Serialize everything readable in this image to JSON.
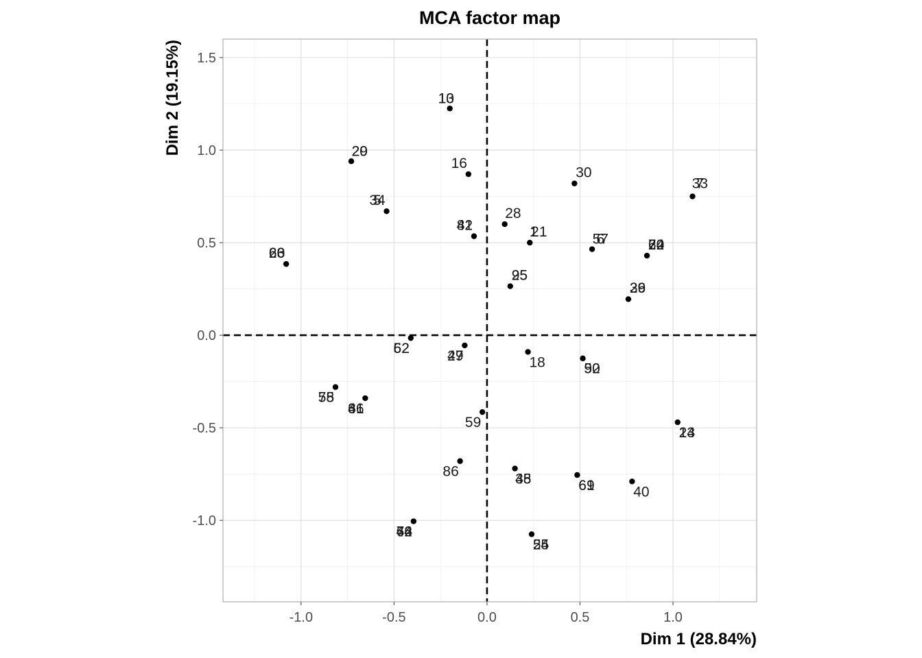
{
  "chart_data": {
    "type": "scatter",
    "title": "MCA factor map",
    "xlabel": "Dim 1 (28.84%)",
    "ylabel": "Dim 2 (19.15%)",
    "xlim": [
      -1.42,
      1.45
    ],
    "ylim": [
      -1.44,
      1.6
    ],
    "xticks": [
      -1.0,
      -0.5,
      0.0,
      0.5,
      1.0
    ],
    "xtick_labels": [
      "-1.0",
      "-0.5",
      "0.0",
      "0.5",
      "1.0"
    ],
    "yticks": [
      -1.0,
      -0.5,
      0.0,
      0.5,
      1.0,
      1.5
    ],
    "ytick_labels": [
      "-1.0",
      "-0.5",
      "0.0",
      "0.5",
      "1.0",
      "1.5"
    ],
    "grid": true,
    "reference_lines": {
      "x": 0,
      "y": 0,
      "style": "dashed"
    },
    "colors": {
      "points": "#000000",
      "labels": "#1a1a1a",
      "panel_border": "#b3b3b3",
      "grid": "#dcdcdc"
    },
    "points": [
      {
        "x": -0.2,
        "y": 1.225,
        "labels": [
          {
            "text": "10",
            "dx": -0.02,
            "dy": 0.055
          },
          {
            "text": "13",
            "dx": -0.02,
            "dy": 0.055
          }
        ]
      },
      {
        "x": -0.73,
        "y": 0.94,
        "labels": [
          {
            "text": "29",
            "dx": 0.045,
            "dy": 0.055
          },
          {
            "text": "20",
            "dx": 0.045,
            "dy": 0.055
          }
        ]
      },
      {
        "x": -0.1,
        "y": 0.87,
        "labels": [
          {
            "text": "16",
            "dx": -0.05,
            "dy": 0.06
          }
        ]
      },
      {
        "x": 0.47,
        "y": 0.82,
        "labels": [
          {
            "text": "30",
            "dx": 0.05,
            "dy": 0.06
          }
        ]
      },
      {
        "x": 1.105,
        "y": 0.75,
        "labels": [
          {
            "text": "7",
            "dx": 0.04,
            "dy": 0.07
          },
          {
            "text": "33",
            "dx": 0.04,
            "dy": 0.07
          }
        ]
      },
      {
        "x": -0.54,
        "y": 0.67,
        "labels": [
          {
            "text": "34",
            "dx": -0.05,
            "dy": 0.06
          },
          {
            "text": "5",
            "dx": -0.05,
            "dy": 0.06
          }
        ]
      },
      {
        "x": 0.095,
        "y": 0.6,
        "labels": [
          {
            "text": "28",
            "dx": 0.045,
            "dy": 0.06
          }
        ]
      },
      {
        "x": -0.07,
        "y": 0.535,
        "labels": [
          {
            "text": "81",
            "dx": -0.05,
            "dy": 0.06
          },
          {
            "text": "42",
            "dx": -0.05,
            "dy": 0.06
          }
        ]
      },
      {
        "x": 0.23,
        "y": 0.5,
        "labels": [
          {
            "text": "1",
            "dx": 0.02,
            "dy": 0.06
          },
          {
            "text": "21",
            "dx": 0.05,
            "dy": 0.06
          }
        ]
      },
      {
        "x": 0.565,
        "y": 0.465,
        "labels": [
          {
            "text": "6",
            "dx": 0.045,
            "dy": 0.055
          },
          {
            "text": "57",
            "dx": 0.045,
            "dy": 0.055
          }
        ]
      },
      {
        "x": 0.86,
        "y": 0.43,
        "labels": [
          {
            "text": "64",
            "dx": 0.05,
            "dy": 0.06
          },
          {
            "text": "70",
            "dx": 0.05,
            "dy": 0.06
          },
          {
            "text": "22",
            "dx": 0.05,
            "dy": 0.06
          }
        ]
      },
      {
        "x": -1.08,
        "y": 0.385,
        "labels": [
          {
            "text": "23",
            "dx": -0.05,
            "dy": 0.06
          },
          {
            "text": "60",
            "dx": -0.05,
            "dy": 0.06
          },
          {
            "text": "66",
            "dx": -0.05,
            "dy": 0.06
          }
        ]
      },
      {
        "x": 0.125,
        "y": 0.265,
        "labels": [
          {
            "text": "95",
            "dx": 0.05,
            "dy": 0.06
          },
          {
            "text": "25",
            "dx": 0.05,
            "dy": 0.06
          }
        ]
      },
      {
        "x": 0.76,
        "y": 0.195,
        "labels": [
          {
            "text": "39",
            "dx": 0.05,
            "dy": 0.06
          },
          {
            "text": "26",
            "dx": 0.05,
            "dy": 0.06
          }
        ]
      },
      {
        "x": -0.41,
        "y": -0.015,
        "labels": [
          {
            "text": "52",
            "dx": -0.05,
            "dy": -0.055
          },
          {
            "text": "62",
            "dx": -0.05,
            "dy": -0.055
          }
        ]
      },
      {
        "x": -0.12,
        "y": -0.055,
        "labels": [
          {
            "text": "47",
            "dx": -0.05,
            "dy": -0.055
          },
          {
            "text": "29",
            "dx": -0.05,
            "dy": -0.055
          }
        ]
      },
      {
        "x": 0.22,
        "y": -0.09,
        "labels": [
          {
            "text": "18",
            "dx": 0.05,
            "dy": -0.055
          }
        ]
      },
      {
        "x": 0.515,
        "y": -0.125,
        "labels": [
          {
            "text": "90",
            "dx": 0.05,
            "dy": -0.055
          },
          {
            "text": "52",
            "dx": 0.05,
            "dy": -0.055
          }
        ]
      },
      {
        "x": -0.815,
        "y": -0.28,
        "labels": [
          {
            "text": "75",
            "dx": -0.05,
            "dy": -0.055
          },
          {
            "text": "58",
            "dx": -0.05,
            "dy": -0.055
          }
        ]
      },
      {
        "x": -0.655,
        "y": -0.34,
        "labels": [
          {
            "text": "31",
            "dx": -0.05,
            "dy": -0.055
          },
          {
            "text": "46",
            "dx": -0.05,
            "dy": -0.055
          },
          {
            "text": "61",
            "dx": -0.05,
            "dy": -0.055
          }
        ]
      },
      {
        "x": -0.025,
        "y": -0.415,
        "labels": [
          {
            "text": "59",
            "dx": -0.05,
            "dy": -0.055
          }
        ]
      },
      {
        "x": 1.025,
        "y": -0.47,
        "labels": [
          {
            "text": "23",
            "dx": 0.05,
            "dy": -0.055
          },
          {
            "text": "14",
            "dx": 0.05,
            "dy": -0.055
          }
        ]
      },
      {
        "x": -0.145,
        "y": -0.68,
        "labels": [
          {
            "text": "86",
            "dx": -0.05,
            "dy": -0.055
          }
        ]
      },
      {
        "x": 0.15,
        "y": -0.72,
        "labels": [
          {
            "text": "45",
            "dx": 0.045,
            "dy": -0.055
          },
          {
            "text": "38",
            "dx": 0.045,
            "dy": -0.055
          }
        ]
      },
      {
        "x": 0.485,
        "y": -0.755,
        "labels": [
          {
            "text": "61",
            "dx": 0.05,
            "dy": -0.055
          },
          {
            "text": "69",
            "dx": 0.05,
            "dy": -0.055
          }
        ]
      },
      {
        "x": 0.78,
        "y": -0.79,
        "labels": [
          {
            "text": "40",
            "dx": 0.05,
            "dy": -0.055
          }
        ]
      },
      {
        "x": -0.395,
        "y": -1.005,
        "labels": [
          {
            "text": "76",
            "dx": -0.05,
            "dy": -0.055
          },
          {
            "text": "42",
            "dx": -0.05,
            "dy": -0.055
          },
          {
            "text": "64",
            "dx": -0.05,
            "dy": -0.055
          }
        ]
      },
      {
        "x": 0.24,
        "y": -1.075,
        "labels": [
          {
            "text": "54",
            "dx": 0.05,
            "dy": -0.055
          },
          {
            "text": "25",
            "dx": 0.05,
            "dy": -0.055
          }
        ]
      }
    ]
  }
}
